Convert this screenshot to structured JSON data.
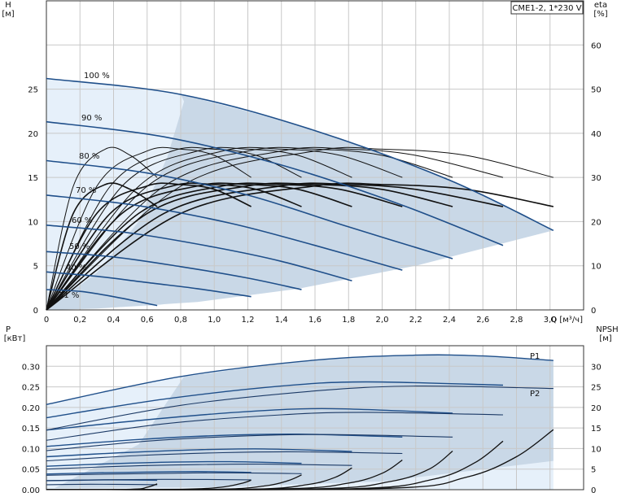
{
  "chart_data": [
    {
      "type": "line",
      "title": "CME1-2, 1*230 V",
      "ylabel_left": "H",
      "ylabel_left_unit": "[м]",
      "ylabel_right": "eta",
      "ylabel_right_unit": "[%]",
      "xlabel": "Q [м³/ч]",
      "x_ticks": [
        "0",
        "0,2",
        "0,4",
        "0,6",
        "0,8",
        "1,0",
        "1,2",
        "1,4",
        "1,6",
        "1,8",
        "2,0",
        "2,2",
        "2,4",
        "2,6",
        "2,8",
        "3,0"
      ],
      "y_ticks": [
        "0",
        "5",
        "10",
        "15",
        "20",
        "25"
      ],
      "y_right_ticks": [
        "0",
        "10",
        "20",
        "30",
        "40",
        "50",
        "60"
      ],
      "xlim": [
        0,
        3.2
      ],
      "ylim": [
        0,
        35
      ],
      "ylim_right": [
        0,
        70
      ],
      "grid": true,
      "speed_curve_labels": [
        "100 %",
        "90 %",
        "80 %",
        "70 %",
        "60 %",
        "50 %",
        "40 %",
        "31 %"
      ],
      "head_curves": [
        {
          "name": "100 %",
          "x": [
            0,
            0.8,
            1.6,
            2.4,
            3.02
          ],
          "y": [
            26.2,
            24.4,
            20.3,
            14.7,
            9.0
          ]
        },
        {
          "name": "90 %",
          "x": [
            0,
            0.7,
            1.4,
            2.1,
            2.72
          ],
          "y": [
            21.3,
            19.6,
            16.4,
            12.0,
            7.3
          ]
        },
        {
          "name": "80 %",
          "x": [
            0,
            0.6,
            1.2,
            1.8,
            2.42
          ],
          "y": [
            16.9,
            15.5,
            13.0,
            9.4,
            5.8
          ]
        },
        {
          "name": "70 %",
          "x": [
            0,
            0.55,
            1.1,
            1.6,
            2.12
          ],
          "y": [
            13.0,
            11.8,
            9.8,
            7.3,
            4.5
          ]
        },
        {
          "name": "60 %",
          "x": [
            0,
            0.5,
            1.0,
            1.4,
            1.82
          ],
          "y": [
            9.6,
            8.7,
            7.1,
            5.5,
            3.3
          ]
        },
        {
          "name": "50 %",
          "x": [
            0,
            0.4,
            0.8,
            1.2,
            1.52
          ],
          "y": [
            6.6,
            6.0,
            4.9,
            3.6,
            2.3
          ]
        },
        {
          "name": "40 %",
          "x": [
            0,
            0.3,
            0.6,
            0.9,
            1.22
          ],
          "y": [
            4.3,
            3.8,
            3.1,
            2.4,
            1.5
          ]
        },
        {
          "name": "31 %",
          "x": [
            0,
            0.2,
            0.4,
            0.66
          ],
          "y": [
            2.3,
            2.1,
            1.5,
            0.5
          ]
        }
      ],
      "efficiency_curves": [
        {
          "name": "100 %",
          "x": [
            0,
            0.8,
            1.6,
            2.0,
            2.5,
            3.02
          ],
          "y": [
            0,
            28,
            36,
            36.4,
            35,
            30
          ]
        },
        {
          "name": "90 %",
          "x": [
            0,
            0.7,
            1.4,
            1.8,
            2.2,
            2.72
          ],
          "y": [
            0,
            28,
            36,
            36.4,
            35,
            30
          ]
        },
        {
          "name": "80 %",
          "x": [
            0,
            0.6,
            1.2,
            1.6,
            2.0,
            2.42
          ],
          "y": [
            0,
            28,
            36,
            36.4,
            35,
            30
          ]
        },
        {
          "name": "70 %",
          "x": [
            0,
            0.55,
            1.05,
            1.4,
            1.75,
            2.12
          ],
          "y": [
            0,
            28,
            36,
            36.4,
            35,
            30
          ]
        },
        {
          "name": "60 %",
          "x": [
            0,
            0.45,
            0.9,
            1.2,
            1.5,
            1.82
          ],
          "y": [
            0,
            28,
            36,
            36.4,
            35,
            30
          ]
        },
        {
          "name": "50 %",
          "x": [
            0,
            0.38,
            0.75,
            1.0,
            1.25,
            1.52
          ],
          "y": [
            0,
            28,
            36,
            36.4,
            35,
            30
          ]
        },
        {
          "name": "40 %",
          "x": [
            0,
            0.3,
            0.6,
            0.8,
            1.0,
            1.22
          ],
          "y": [
            0,
            28,
            36,
            36.4,
            35,
            30
          ]
        },
        {
          "name": "31 %",
          "x": [
            0,
            0.16,
            0.35,
            0.5,
            0.66
          ],
          "y": [
            0,
            28,
            36.4,
            35,
            30
          ]
        }
      ],
      "operating_range_colors": {
        "light": "#e6f0fa",
        "dark": "#c9d8e7",
        "curve": "#1f4f8a"
      }
    },
    {
      "type": "line",
      "ylabel_left": "P",
      "ylabel_left_unit": "[кВт]",
      "ylabel_right": "NPSH",
      "ylabel_right_unit": "[м]",
      "y_ticks": [
        "0.00",
        "0.05",
        "0.10",
        "0.15",
        "0.20",
        "0.25",
        "0.30"
      ],
      "y_right_ticks": [
        "0",
        "5",
        "10",
        "15",
        "20",
        "25",
        "30"
      ],
      "xlim": [
        0,
        3.2
      ],
      "ylim": [
        0,
        0.35
      ],
      "ylim_right": [
        0,
        35
      ],
      "series_labels": [
        "P1",
        "P2"
      ],
      "p1_curves": [
        {
          "name": "100 %",
          "x": [
            0,
            0.8,
            1.6,
            2.2,
            2.6,
            3.02
          ],
          "y": [
            0.207,
            0.275,
            0.315,
            0.327,
            0.325,
            0.314
          ]
        },
        {
          "name": "90 %",
          "x": [
            0,
            0.7,
            1.4,
            1.9,
            2.72
          ],
          "y": [
            0.175,
            0.22,
            0.252,
            0.262,
            0.254
          ]
        },
        {
          "name": "80 %",
          "x": [
            0,
            0.6,
            1.2,
            1.7,
            2.42
          ],
          "y": [
            0.145,
            0.17,
            0.19,
            0.197,
            0.186
          ]
        },
        {
          "name": "70 %",
          "x": [
            0,
            0.55,
            1.05,
            1.5,
            2.12
          ],
          "y": [
            0.105,
            0.122,
            0.132,
            0.135,
            0.128
          ]
        },
        {
          "name": "60 %",
          "x": [
            0,
            0.45,
            0.9,
            1.3,
            1.82
          ],
          "y": [
            0.08,
            0.09,
            0.097,
            0.099,
            0.093
          ]
        },
        {
          "name": "50 %",
          "x": [
            0,
            0.38,
            0.75,
            1.1,
            1.52
          ],
          "y": [
            0.057,
            0.063,
            0.067,
            0.068,
            0.064
          ]
        },
        {
          "name": "40 %",
          "x": [
            0,
            0.3,
            0.6,
            0.9,
            1.22
          ],
          "y": [
            0.038,
            0.041,
            0.043,
            0.044,
            0.042
          ]
        },
        {
          "name": "31 %",
          "x": [
            0,
            0.2,
            0.4,
            0.66
          ],
          "y": [
            0.022,
            0.023,
            0.024,
            0.023
          ]
        }
      ],
      "p2_curves": [
        {
          "name": "100 %",
          "x": [
            0,
            0.8,
            1.6,
            2.2,
            3.02
          ],
          "y": [
            0.145,
            0.205,
            0.24,
            0.252,
            0.246
          ]
        },
        {
          "name": "90 %",
          "x": [
            0,
            0.7,
            1.4,
            1.9,
            2.72
          ],
          "y": [
            0.12,
            0.16,
            0.182,
            0.188,
            0.182
          ]
        },
        {
          "name": "80 %",
          "x": [
            0,
            0.6,
            1.2,
            1.7,
            2.42
          ],
          "y": [
            0.095,
            0.118,
            0.131,
            0.134,
            0.128
          ]
        },
        {
          "name": "70 %",
          "x": [
            0,
            0.55,
            1.05,
            1.5,
            2.12
          ],
          "y": [
            0.07,
            0.083,
            0.09,
            0.092,
            0.088
          ]
        },
        {
          "name": "60 %",
          "x": [
            0,
            0.45,
            0.9,
            1.3,
            1.82
          ],
          "y": [
            0.05,
            0.057,
            0.061,
            0.062,
            0.059
          ]
        },
        {
          "name": "50 %",
          "x": [
            0,
            0.38,
            0.75,
            1.1,
            1.52
          ],
          "y": [
            0.035,
            0.038,
            0.04,
            0.041,
            0.039
          ]
        },
        {
          "name": "40 %",
          "x": [
            0,
            0.3,
            0.6,
            0.9,
            1.22
          ],
          "y": [
            0.022,
            0.024,
            0.025,
            0.025,
            0.024
          ]
        },
        {
          "name": "31 %",
          "x": [
            0,
            0.2,
            0.4,
            0.66
          ],
          "y": [
            0.012,
            0.013,
            0.013,
            0.012
          ]
        }
      ],
      "npsh_curves": [
        {
          "name": "100 %",
          "x": [
            2.0,
            2.5,
            2.8,
            3.02
          ],
          "y": [
            0.3,
            3.0,
            8.0,
            14.6
          ]
        },
        {
          "name": "90 %",
          "x": [
            1.8,
            2.3,
            2.55,
            2.72
          ],
          "y": [
            0.2,
            2.5,
            6.5,
            11.8
          ]
        },
        {
          "name": "80 %",
          "x": [
            1.6,
            2.05,
            2.28,
            2.42
          ],
          "y": [
            0.2,
            2.0,
            5.0,
            9.4
          ]
        },
        {
          "name": "70 %",
          "x": [
            1.4,
            1.8,
            2.0,
            2.12
          ],
          "y": [
            0.2,
            1.6,
            4.0,
            7.2
          ]
        },
        {
          "name": "60 %",
          "x": [
            1.2,
            1.55,
            1.72,
            1.82
          ],
          "y": [
            0.1,
            1.2,
            3.0,
            5.3
          ]
        },
        {
          "name": "50 %",
          "x": [
            1.0,
            1.3,
            1.44,
            1.52
          ],
          "y": [
            0.1,
            0.9,
            2.2,
            3.6
          ]
        },
        {
          "name": "40 %",
          "x": [
            0.8,
            1.04,
            1.16,
            1.22
          ],
          "y": [
            0.1,
            0.6,
            1.5,
            2.3
          ]
        },
        {
          "name": "31 %",
          "x": [
            0.5,
            0.6,
            0.66
          ],
          "y": [
            0.1,
            0.6,
            1.4
          ]
        }
      ]
    }
  ]
}
